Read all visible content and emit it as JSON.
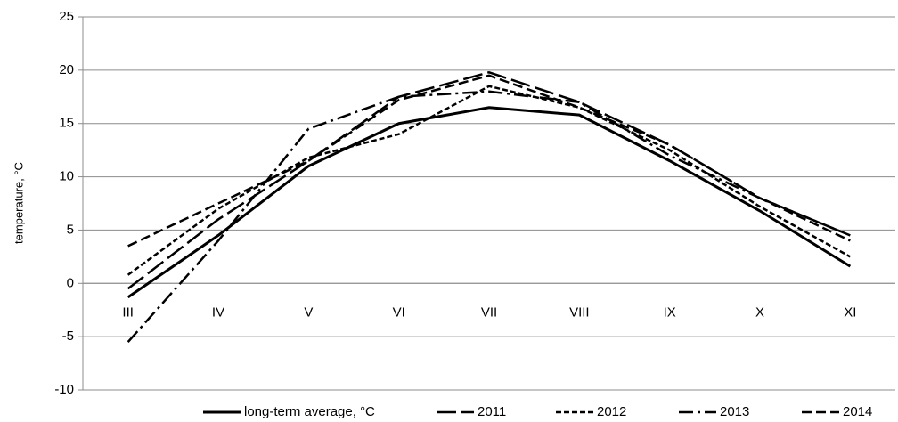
{
  "chart_data": {
    "type": "line",
    "y_label": "temperature, °C",
    "categories": [
      "III",
      "IV",
      "V",
      "VI",
      "VII",
      "VIII",
      "IX",
      "X",
      "XI"
    ],
    "series": [
      {
        "name": "long-term average, °C",
        "color": "#000000",
        "line_style": "solid",
        "values": [
          -1.3,
          4.5,
          11,
          15,
          16.5,
          15.8,
          11.5,
          6.8,
          1.6
        ]
      },
      {
        "name": "2011",
        "color": "#000000",
        "line_style": "long-dash",
        "values": [
          -0.5,
          6,
          11.5,
          17.5,
          19.8,
          17,
          13,
          8,
          4.5
        ]
      },
      {
        "name": "2012",
        "color": "#000000",
        "line_style": "short-dash",
        "values": [
          0.8,
          7,
          11.8,
          14,
          18.5,
          16.5,
          12.5,
          7.2,
          2.5
        ]
      },
      {
        "name": "2013",
        "color": "#000000",
        "line_style": "dash-dot",
        "values": [
          -5.5,
          4,
          14.5,
          17.5,
          18,
          17,
          12,
          8,
          4.5
        ]
      },
      {
        "name": "2014",
        "color": "#000000",
        "line_style": "dash",
        "values": [
          3.5,
          7.5,
          11.5,
          17.2,
          19.5,
          16.5,
          13,
          8,
          4
        ]
      }
    ],
    "ylim": [
      -10,
      25
    ],
    "yticks": [
      -10,
      -5,
      0,
      5,
      10,
      15,
      20,
      25
    ],
    "grid": true,
    "legend": "bottom"
  }
}
